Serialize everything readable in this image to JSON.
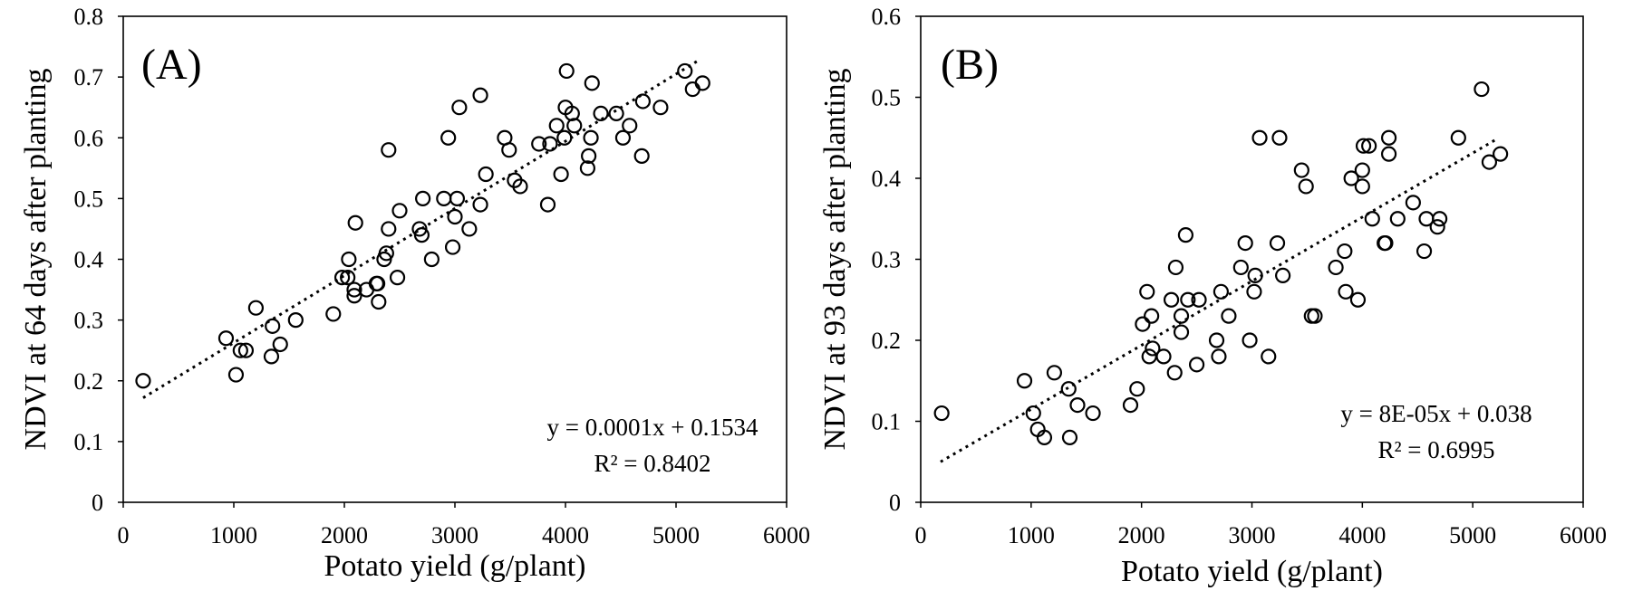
{
  "chart_data": [
    {
      "type": "scatter",
      "panel_label": "(A)",
      "xlabel": "Potato yield (g/plant)",
      "ylabel": "NDVI at 64 days after planting",
      "xlim": [
        0,
        6000
      ],
      "ylim": [
        0,
        0.8
      ],
      "xticks": [
        "0",
        "1000",
        "2000",
        "3000",
        "4000",
        "5000",
        "6000"
      ],
      "yticks": [
        "0",
        "0.1",
        "0.2",
        "0.3",
        "0.4",
        "0.5",
        "0.6",
        "0.7",
        "0.8"
      ],
      "grid": false,
      "equation": "y = 0.0001x + 0.1534",
      "r_squared": "R² = 0.8402",
      "trendline": {
        "x": [
          180,
          5200
        ],
        "y": [
          0.172,
          0.727
        ]
      },
      "points": [
        [
          180,
          0.2
        ],
        [
          930,
          0.27
        ],
        [
          1020,
          0.21
        ],
        [
          1060,
          0.25
        ],
        [
          1110,
          0.25
        ],
        [
          1200,
          0.32
        ],
        [
          1340,
          0.24
        ],
        [
          1350,
          0.29
        ],
        [
          1420,
          0.26
        ],
        [
          1560,
          0.3
        ],
        [
          1900,
          0.31
        ],
        [
          1980,
          0.37
        ],
        [
          2040,
          0.4
        ],
        [
          2030,
          0.37
        ],
        [
          2090,
          0.34
        ],
        [
          2090,
          0.35
        ],
        [
          2100,
          0.46
        ],
        [
          2200,
          0.35
        ],
        [
          2290,
          0.36
        ],
        [
          2300,
          0.36
        ],
        [
          2310,
          0.33
        ],
        [
          2360,
          0.4
        ],
        [
          2380,
          0.41
        ],
        [
          2400,
          0.45
        ],
        [
          2400,
          0.58
        ],
        [
          2480,
          0.37
        ],
        [
          2500,
          0.48
        ],
        [
          2680,
          0.45
        ],
        [
          2700,
          0.44
        ],
        [
          2710,
          0.5
        ],
        [
          2790,
          0.4
        ],
        [
          2900,
          0.5
        ],
        [
          2940,
          0.6
        ],
        [
          2980,
          0.42
        ],
        [
          3000,
          0.47
        ],
        [
          3020,
          0.5
        ],
        [
          3040,
          0.65
        ],
        [
          3130,
          0.45
        ],
        [
          3230,
          0.49
        ],
        [
          3230,
          0.67
        ],
        [
          3280,
          0.54
        ],
        [
          3450,
          0.6
        ],
        [
          3490,
          0.58
        ],
        [
          3540,
          0.53
        ],
        [
          3590,
          0.52
        ],
        [
          3760,
          0.59
        ],
        [
          3840,
          0.49
        ],
        [
          3860,
          0.59
        ],
        [
          3920,
          0.62
        ],
        [
          3960,
          0.54
        ],
        [
          3990,
          0.6
        ],
        [
          4000,
          0.65
        ],
        [
          4010,
          0.71
        ],
        [
          4060,
          0.64
        ],
        [
          4080,
          0.62
        ],
        [
          4200,
          0.55
        ],
        [
          4210,
          0.57
        ],
        [
          4230,
          0.6
        ],
        [
          4240,
          0.69
        ],
        [
          4320,
          0.64
        ],
        [
          4460,
          0.64
        ],
        [
          4520,
          0.6
        ],
        [
          4580,
          0.62
        ],
        [
          4690,
          0.57
        ],
        [
          4700,
          0.66
        ],
        [
          4860,
          0.65
        ],
        [
          5080,
          0.71
        ],
        [
          5150,
          0.68
        ],
        [
          5240,
          0.69
        ]
      ]
    },
    {
      "type": "scatter",
      "panel_label": "(B)",
      "xlabel": "Potato yield (g/plant)",
      "ylabel": "NDVI at 93 days after planting",
      "xlim": [
        0,
        6000
      ],
      "ylim": [
        0,
        0.6
      ],
      "xticks": [
        "0",
        "1000",
        "2000",
        "3000",
        "4000",
        "5000",
        "6000"
      ],
      "yticks": [
        "0",
        "0.1",
        "0.2",
        "0.3",
        "0.4",
        "0.5",
        "0.6"
      ],
      "grid": false,
      "equation": "y = 8E-05x + 0.038",
      "r_squared": "R² = 0.6995",
      "trendline": {
        "x": [
          180,
          5200
        ],
        "y": [
          0.05,
          0.447
        ]
      },
      "points": [
        [
          190,
          0.11
        ],
        [
          940,
          0.15
        ],
        [
          1020,
          0.11
        ],
        [
          1060,
          0.09
        ],
        [
          1120,
          0.08
        ],
        [
          1210,
          0.16
        ],
        [
          1340,
          0.14
        ],
        [
          1350,
          0.08
        ],
        [
          1420,
          0.12
        ],
        [
          1560,
          0.11
        ],
        [
          1900,
          0.12
        ],
        [
          1960,
          0.14
        ],
        [
          2010,
          0.22
        ],
        [
          2050,
          0.26
        ],
        [
          2070,
          0.18
        ],
        [
          2090,
          0.23
        ],
        [
          2100,
          0.19
        ],
        [
          2200,
          0.18
        ],
        [
          2270,
          0.25
        ],
        [
          2300,
          0.16
        ],
        [
          2310,
          0.29
        ],
        [
          2360,
          0.21
        ],
        [
          2360,
          0.23
        ],
        [
          2400,
          0.33
        ],
        [
          2420,
          0.25
        ],
        [
          2500,
          0.17
        ],
        [
          2520,
          0.25
        ],
        [
          2680,
          0.2
        ],
        [
          2700,
          0.18
        ],
        [
          2720,
          0.26
        ],
        [
          2790,
          0.23
        ],
        [
          2900,
          0.29
        ],
        [
          2940,
          0.32
        ],
        [
          2980,
          0.2
        ],
        [
          3020,
          0.26
        ],
        [
          3030,
          0.28
        ],
        [
          3070,
          0.45
        ],
        [
          3150,
          0.18
        ],
        [
          3230,
          0.32
        ],
        [
          3250,
          0.45
        ],
        [
          3280,
          0.28
        ],
        [
          3450,
          0.41
        ],
        [
          3490,
          0.39
        ],
        [
          3540,
          0.23
        ],
        [
          3570,
          0.23
        ],
        [
          3760,
          0.29
        ],
        [
          3840,
          0.31
        ],
        [
          3850,
          0.26
        ],
        [
          3900,
          0.4
        ],
        [
          3960,
          0.25
        ],
        [
          4000,
          0.41
        ],
        [
          4000,
          0.39
        ],
        [
          4010,
          0.44
        ],
        [
          4060,
          0.44
        ],
        [
          4090,
          0.35
        ],
        [
          4200,
          0.32
        ],
        [
          4210,
          0.32
        ],
        [
          4240,
          0.45
        ],
        [
          4240,
          0.43
        ],
        [
          4320,
          0.35
        ],
        [
          4460,
          0.37
        ],
        [
          4560,
          0.31
        ],
        [
          4580,
          0.35
        ],
        [
          4680,
          0.34
        ],
        [
          4700,
          0.35
        ],
        [
          4870,
          0.45
        ],
        [
          5080,
          0.51
        ],
        [
          5150,
          0.42
        ],
        [
          5250,
          0.43
        ]
      ]
    }
  ]
}
